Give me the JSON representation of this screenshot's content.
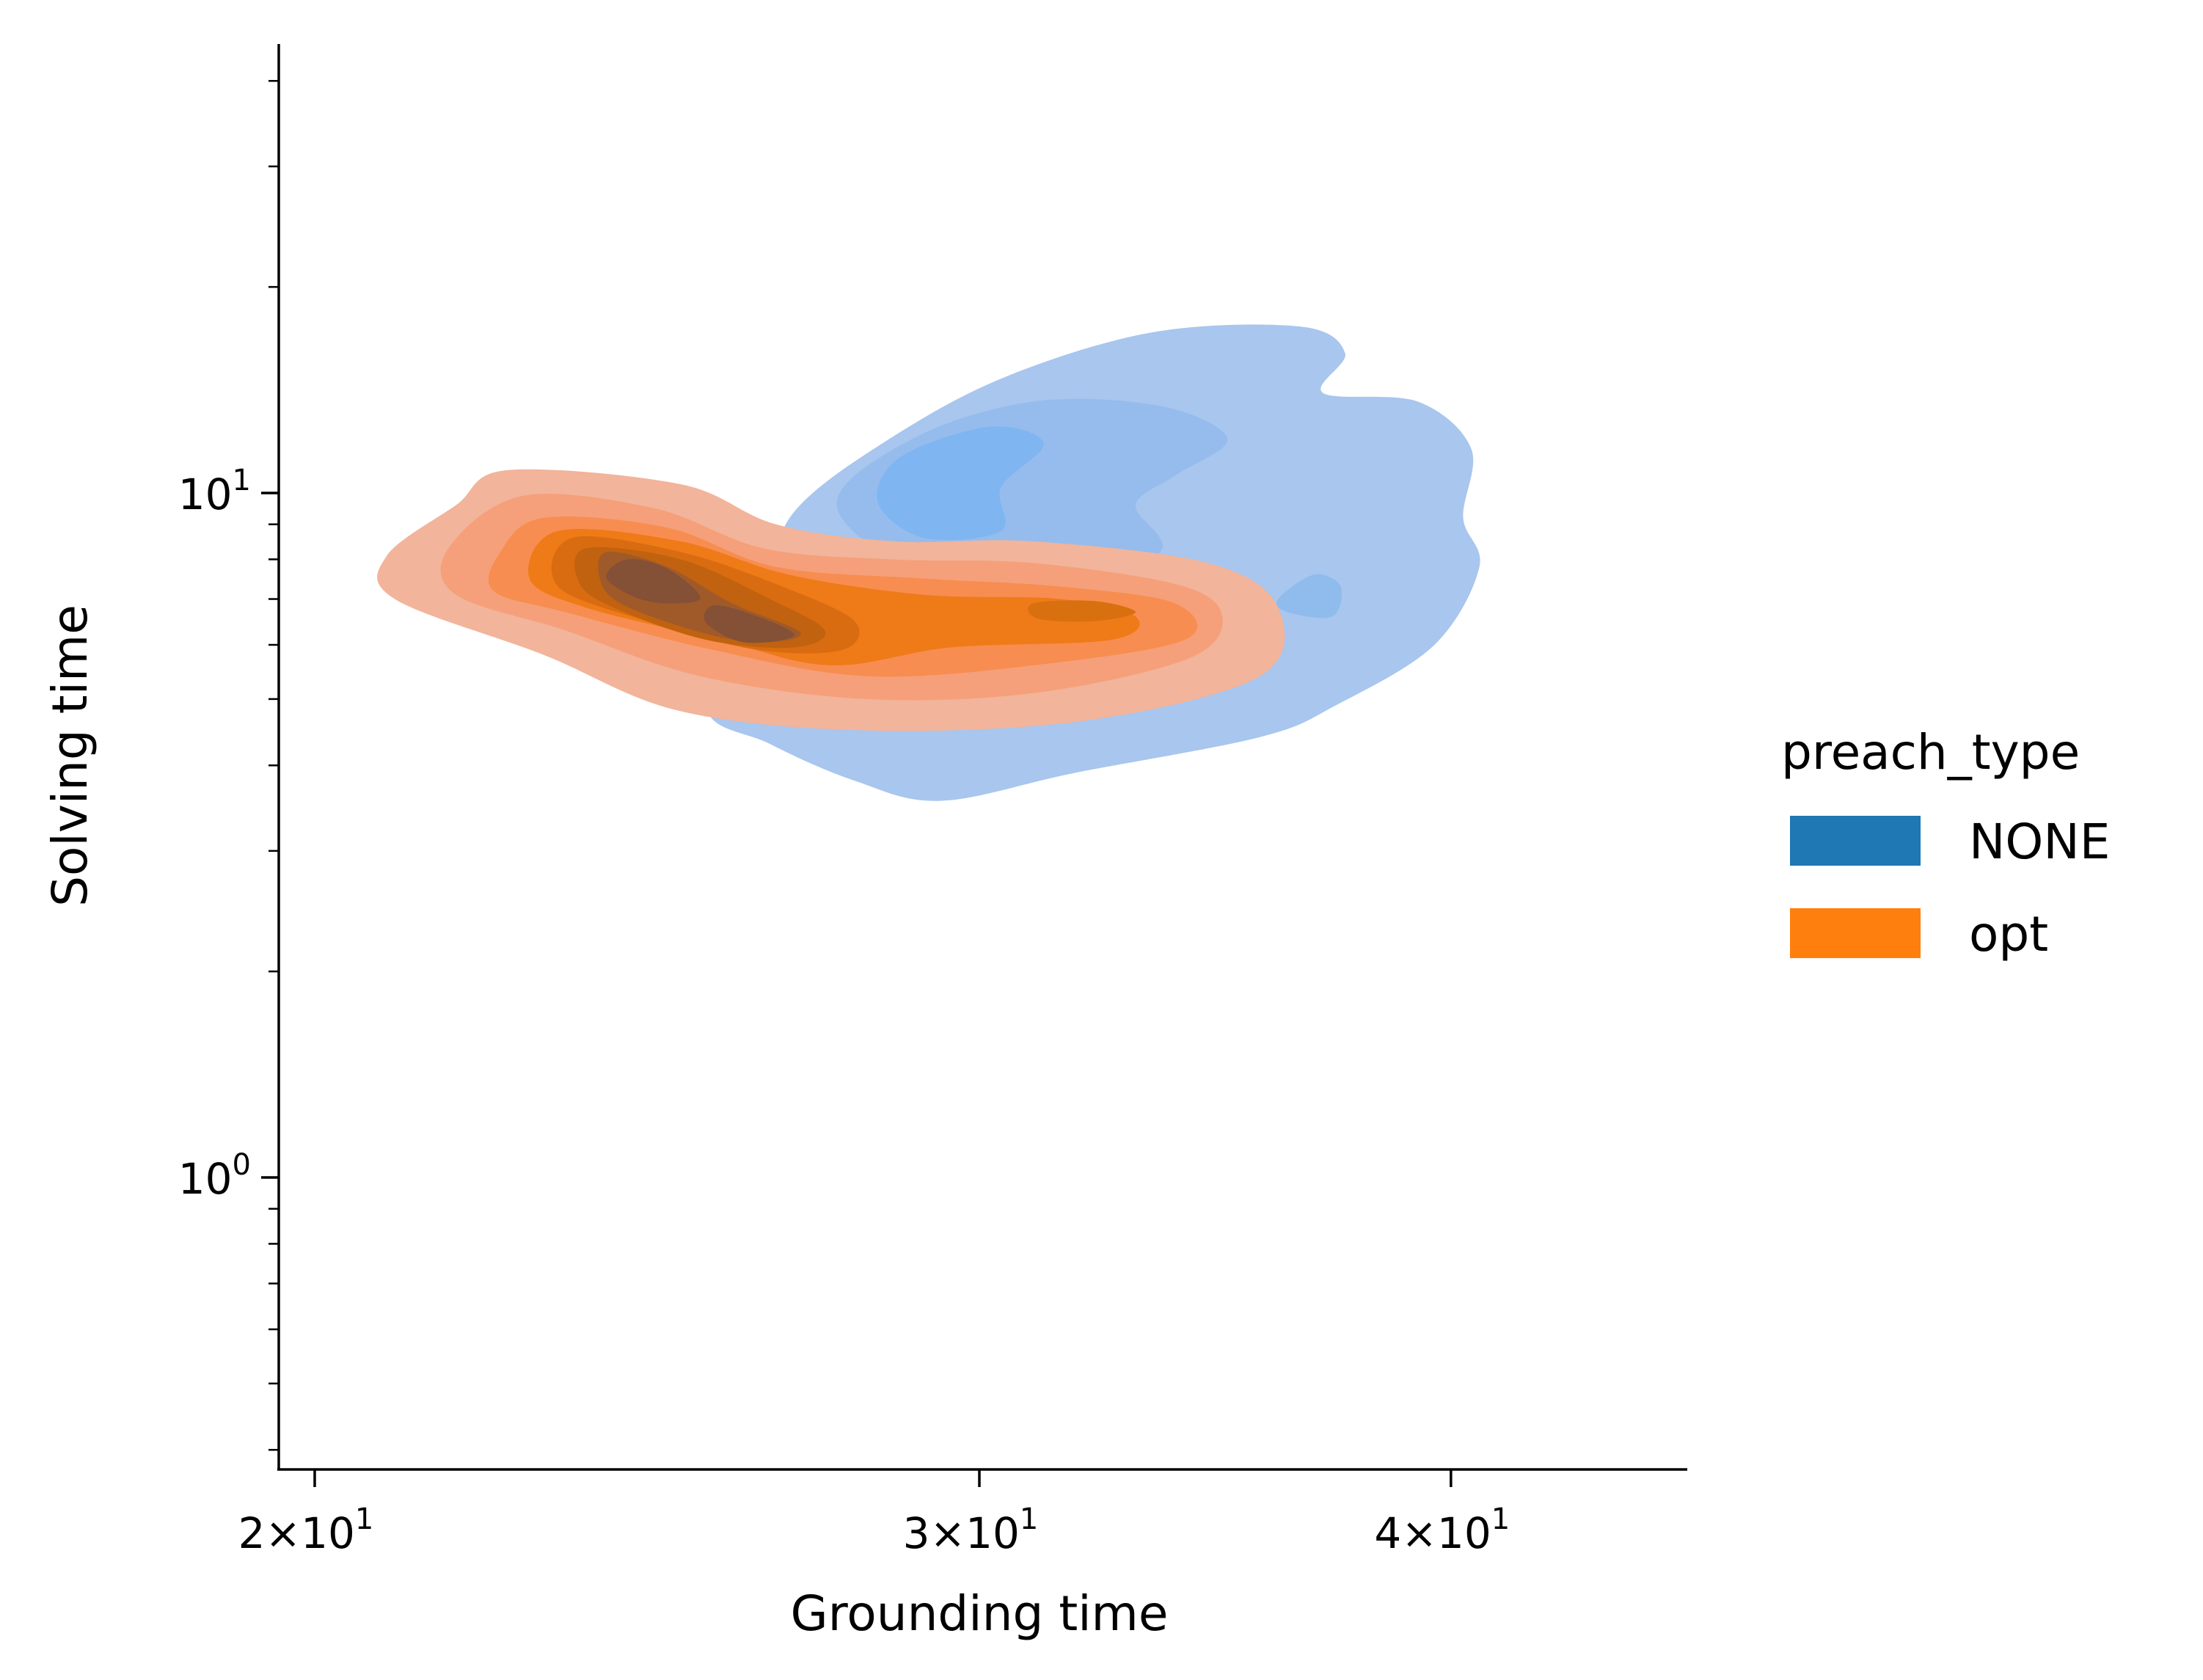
{
  "chart_data": {
    "type": "kde_bivariate",
    "title": "",
    "xlabel": "Grounding time",
    "ylabel": "Solving time",
    "xscale": "log",
    "yscale": "log",
    "xlim": [
      19.6,
      47.5
    ],
    "ylim": [
      0.4,
      45
    ],
    "x_ticks": [
      {
        "value": 20,
        "base": "2",
        "exp": "1"
      },
      {
        "value": 30,
        "base": "3",
        "exp": "1"
      },
      {
        "value": 40,
        "base": "4",
        "exp": "1"
      }
    ],
    "y_ticks": [
      {
        "value": 1,
        "base": "10",
        "exp": "0"
      },
      {
        "value": 10,
        "base": "10",
        "exp": "1"
      }
    ],
    "y_minor_ticks": [
      0.4,
      0.5,
      0.6,
      0.7,
      0.8,
      0.9,
      2,
      3,
      4,
      5,
      6,
      7,
      8,
      9,
      20,
      30,
      40
    ],
    "grid": false,
    "legend": {
      "title": "preach_type",
      "placement": "right",
      "entries": [
        {
          "label": "NONE",
          "color": "#1f77b4"
        },
        {
          "label": "opt",
          "color": "#ff7f0e"
        }
      ]
    },
    "series": [
      {
        "name": "NONE",
        "color": "#1f77b4",
        "levels": [
          {
            "fill": "#a8c6ee",
            "contour": [
              [
                26.8,
                9.4
              ],
              [
                28.4,
                12.0
              ],
              [
                30.5,
                14.8
              ],
              [
                33.4,
                17.2
              ],
              [
                36.5,
                17.5
              ],
              [
                37.5,
                16.0
              ],
              [
                37.0,
                14.0
              ],
              [
                39.2,
                13.6
              ],
              [
                40.5,
                11.6
              ],
              [
                40.3,
                9.2
              ],
              [
                40.7,
                7.8
              ],
              [
                39.6,
                6.0
              ],
              [
                37.3,
                4.9
              ],
              [
                35.6,
                4.4
              ],
              [
                31.8,
                3.9
              ],
              [
                29.3,
                3.55
              ],
              [
                27.8,
                3.8
              ],
              [
                26.4,
                4.3
              ],
              [
                25.4,
                4.9
              ],
              [
                26.3,
                7.2
              ],
              [
                26.8,
                9.4
              ]
            ]
          },
          {
            "fill": "#95bced",
            "contour": [
              [
                27.5,
                9.6
              ],
              [
                28.8,
                12.0
              ],
              [
                31.0,
                13.6
              ],
              [
                33.5,
                13.4
              ],
              [
                34.9,
                12.0
              ],
              [
                33.8,
                10.6
              ],
              [
                33.0,
                9.6
              ],
              [
                33.5,
                8.2
              ],
              [
                31.5,
                7.2
              ],
              [
                29.0,
                7.6
              ],
              [
                27.5,
                9.6
              ]
            ]
          },
          {
            "fill": "#7fb5f0",
            "contour": [
              [
                28.2,
                9.7
              ],
              [
                28.6,
                11.3
              ],
              [
                30.2,
                12.5
              ],
              [
                31.2,
                11.8
              ],
              [
                30.4,
                10.2
              ],
              [
                30.4,
                8.8
              ],
              [
                29.0,
                8.6
              ],
              [
                28.2,
                9.7
              ]
            ]
          },
          {
            "fill": "#8fbced",
            "contour": [
              [
                36.0,
                7.0
              ],
              [
                36.8,
                7.6
              ],
              [
                37.4,
                7.3
              ],
              [
                37.2,
                6.6
              ],
              [
                36.2,
                6.7
              ],
              [
                36.0,
                7.0
              ]
            ]
          }
        ]
      },
      {
        "name": "opt",
        "color": "#ff7f0e",
        "levels": [
          {
            "fill": "#f2b49a",
            "contour": [
              [
                22.5,
                10.8
              ],
              [
                25.0,
                10.3
              ],
              [
                26.5,
                9.0
              ],
              [
                28.5,
                8.5
              ],
              [
                31.0,
                8.5
              ],
              [
                34.5,
                7.9
              ],
              [
                36.0,
                6.8
              ],
              [
                35.6,
                5.4
              ],
              [
                32.0,
                4.65
              ],
              [
                28.0,
                4.5
              ],
              [
                25.0,
                4.8
              ],
              [
                23.0,
                5.8
              ],
              [
                21.0,
                7.0
              ],
              [
                20.9,
                8.1
              ],
              [
                21.8,
                9.6
              ],
              [
                22.5,
                10.8
              ]
            ]
          },
          {
            "fill": "#f5a07a",
            "contour": [
              [
                22.7,
                9.9
              ],
              [
                24.6,
                9.5
              ],
              [
                26.3,
                8.3
              ],
              [
                28.4,
                8.0
              ],
              [
                31.0,
                7.9
              ],
              [
                34.0,
                7.3
              ],
              [
                34.8,
                6.5
              ],
              [
                34.0,
                5.7
              ],
              [
                31.0,
                5.1
              ],
              [
                28.0,
                5.0
              ],
              [
                25.3,
                5.4
              ],
              [
                23.3,
                6.3
              ],
              [
                21.8,
                7.1
              ],
              [
                21.7,
                8.3
              ],
              [
                22.7,
                9.9
              ]
            ]
          },
          {
            "fill": "#f78d50",
            "contour": [
              [
                23.0,
                9.2
              ],
              [
                24.8,
                8.9
              ],
              [
                26.5,
                7.8
              ],
              [
                29.0,
                7.5
              ],
              [
                31.5,
                7.3
              ],
              [
                33.8,
                6.9
              ],
              [
                34.0,
                6.1
              ],
              [
                31.0,
                5.6
              ],
              [
                28.0,
                5.4
              ],
              [
                25.5,
                5.9
              ],
              [
                23.3,
                6.7
              ],
              [
                22.3,
                7.2
              ],
              [
                22.4,
                8.2
              ],
              [
                23.0,
                9.2
              ]
            ]
          },
          {
            "fill": "#ef7a18",
            "contour": [
              [
                23.2,
                8.8
              ],
              [
                25.0,
                8.5
              ],
              [
                26.7,
                7.6
              ],
              [
                29.0,
                7.1
              ],
              [
                31.5,
                7.0
              ],
              [
                33.0,
                6.6
              ],
              [
                32.5,
                6.1
              ],
              [
                29.5,
                5.95
              ],
              [
                27.4,
                5.6
              ],
              [
                25.6,
                6.1
              ],
              [
                23.6,
                6.8
              ],
              [
                22.8,
                7.5
              ],
              [
                23.2,
                8.8
              ]
            ]
          },
          {
            "fill": "#d96c10",
            "contour": [
              [
                23.4,
                8.6
              ],
              [
                25.0,
                8.2
              ],
              [
                26.6,
                7.3
              ],
              [
                27.8,
                6.5
              ],
              [
                27.6,
                5.9
              ],
              [
                26.2,
                5.9
              ],
              [
                24.5,
                6.5
              ],
              [
                23.2,
                7.3
              ],
              [
                23.4,
                8.6
              ]
            ]
          },
          {
            "fill": "#c0620f",
            "contour": [
              [
                23.6,
                8.3
              ],
              [
                25.0,
                8.0
              ],
              [
                26.4,
                7.0
              ],
              [
                27.3,
                6.3
              ],
              [
                26.8,
                5.95
              ],
              [
                25.4,
                6.1
              ],
              [
                24.0,
                6.8
              ],
              [
                23.5,
                7.4
              ],
              [
                23.6,
                8.3
              ]
            ]
          },
          {
            "fill": "#a05a2a",
            "contour": [
              [
                23.9,
                8.2
              ],
              [
                24.8,
                7.8
              ],
              [
                25.8,
                6.9
              ],
              [
                26.9,
                6.25
              ],
              [
                26.2,
                6.05
              ],
              [
                25.2,
                6.3
              ],
              [
                24.1,
                6.9
              ],
              [
                23.8,
                7.5
              ],
              [
                23.9,
                8.2
              ]
            ]
          },
          {
            "fill": "#845036",
            "contour": [
              [
                24.2,
                8.0
              ],
              [
                24.8,
                7.75
              ],
              [
                25.3,
                7.0
              ],
              [
                24.5,
                6.95
              ],
              [
                23.9,
                7.5
              ],
              [
                24.2,
                8.0
              ]
            ]
          },
          {
            "fill": "#845036",
            "contour": [
              [
                25.5,
                6.85
              ],
              [
                26.1,
                6.65
              ],
              [
                26.8,
                6.2
              ],
              [
                26.0,
                6.05
              ],
              [
                25.4,
                6.45
              ],
              [
                25.5,
                6.85
              ]
            ]
          },
          {
            "fill": "#d9700f",
            "contour": [
              [
                31.0,
                6.9
              ],
              [
                32.2,
                6.95
              ],
              [
                33.0,
                6.7
              ],
              [
                32.2,
                6.5
              ],
              [
                31.1,
                6.55
              ],
              [
                31.0,
                6.9
              ]
            ]
          }
        ]
      }
    ]
  }
}
